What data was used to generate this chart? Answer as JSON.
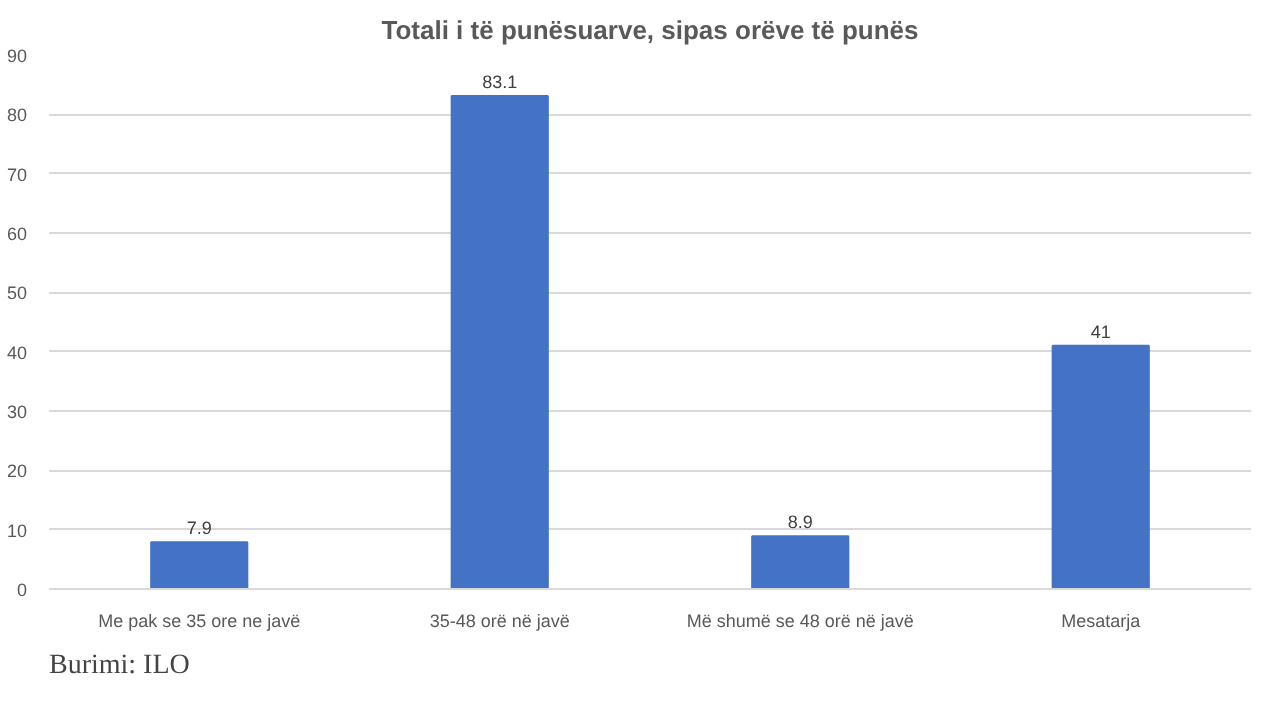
{
  "chart_data": {
    "type": "bar",
    "title": "Totali i të punësuarve, sipas orëve të punës",
    "categories": [
      "Me pak se 35 ore ne javë",
      "35-48 orë në javë",
      "Më shumë se 48 orë në javë",
      "Mesatarja"
    ],
    "values": [
      7.9,
      83.1,
      8.9,
      41
    ],
    "color": "#4472c4",
    "ylim": [
      0,
      90
    ],
    "yticks": [
      0,
      10,
      20,
      30,
      40,
      50,
      60,
      70,
      80,
      90
    ],
    "grid": "y",
    "data_labels": true,
    "annotations": [
      "Burimi: ILO"
    ]
  }
}
